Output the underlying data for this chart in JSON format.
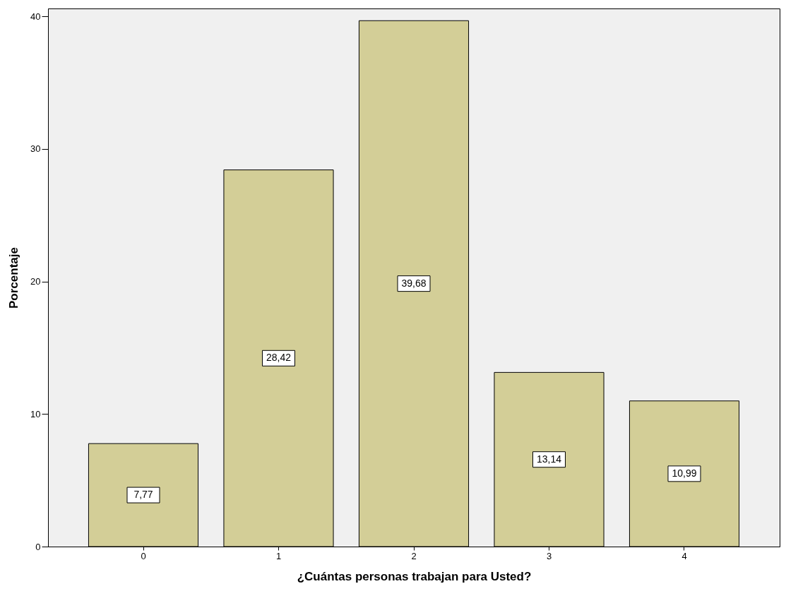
{
  "chart_data": {
    "type": "bar",
    "xlabel": "¿Cuántas personas trabajan para Usted?",
    "ylabel": "Porcentaje",
    "categories": [
      "0",
      "1",
      "2",
      "3",
      "4"
    ],
    "values": [
      7.77,
      28.42,
      39.68,
      13.14,
      10.99
    ],
    "value_labels": [
      "7,77",
      "28,42",
      "39,68",
      "13,14",
      "10,99"
    ],
    "color": "#d3ce97",
    "ylim": [
      0,
      40.6
    ],
    "yticks": [
      0,
      10,
      20,
      30,
      40
    ],
    "grid": false
  }
}
